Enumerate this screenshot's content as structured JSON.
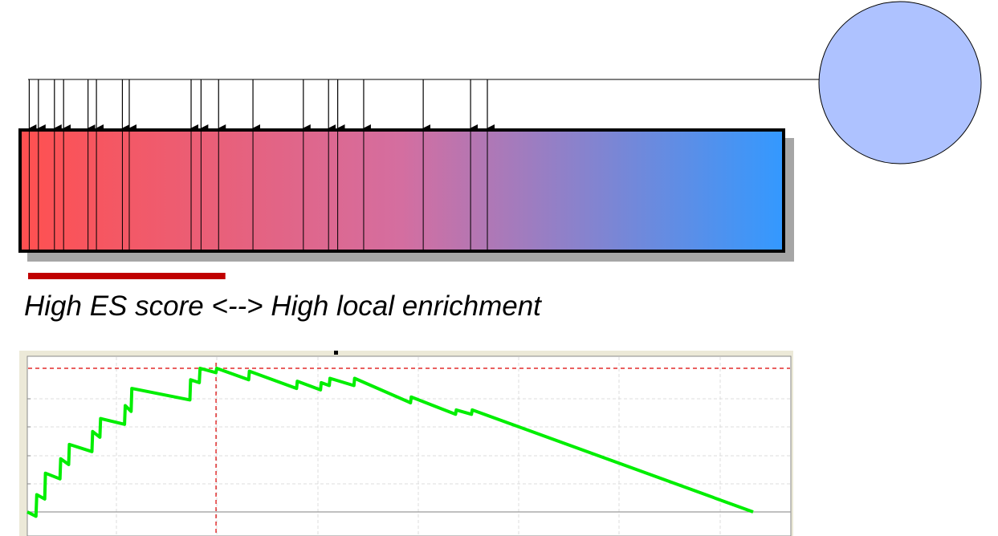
{
  "caption": "High ES score <--> High local enrichment",
  "gene_set": {
    "node_color": "#aec2ff",
    "hit_ranks": [
      0.012,
      0.024,
      0.045,
      0.057,
      0.089,
      0.1,
      0.134,
      0.143,
      0.224,
      0.237,
      0.26,
      0.305,
      0.371,
      0.404,
      0.416,
      0.45,
      0.528,
      0.59,
      0.612
    ]
  },
  "ranked_list": {
    "gradient_start_color": "#ff5050",
    "gradient_mid_color": "#d46ea0",
    "gradient_end_color": "#3399ff",
    "border_color": "#000000",
    "shadow_color": "#a6a6a6"
  },
  "leading_edge": {
    "start_fraction": 0.0,
    "end_fraction": 0.27,
    "color": "#c00000"
  },
  "chart_data": {
    "type": "line",
    "title": "",
    "xlabel": "",
    "ylabel": "",
    "grid": true,
    "series_color": "#00ee00",
    "max_line_color": "#dd0000",
    "peak_rank_fraction": 0.26,
    "baseline_y": 0.0,
    "peak_y": 1.0,
    "series": [
      {
        "name": "",
        "x": [
          0.0,
          0.012,
          0.013,
          0.024,
          0.025,
          0.045,
          0.046,
          0.057,
          0.058,
          0.089,
          0.09,
          0.1,
          0.101,
          0.134,
          0.135,
          0.143,
          0.144,
          0.224,
          0.225,
          0.237,
          0.238,
          0.26,
          0.261,
          0.305,
          0.306,
          0.371,
          0.372,
          0.404,
          0.405,
          0.416,
          0.417,
          0.45,
          0.451,
          0.528,
          0.529,
          0.59,
          0.591,
          0.612,
          0.613,
          1.0
        ],
        "y": [
          0.0,
          -0.03,
          0.12,
          0.09,
          0.27,
          0.23,
          0.37,
          0.33,
          0.47,
          0.42,
          0.56,
          0.52,
          0.65,
          0.61,
          0.74,
          0.7,
          0.86,
          0.78,
          0.92,
          0.9,
          1.0,
          0.97,
          1.0,
          0.92,
          0.98,
          0.86,
          0.91,
          0.85,
          0.9,
          0.88,
          0.93,
          0.88,
          0.93,
          0.76,
          0.8,
          0.68,
          0.71,
          0.68,
          0.71,
          0.0
        ]
      }
    ]
  }
}
